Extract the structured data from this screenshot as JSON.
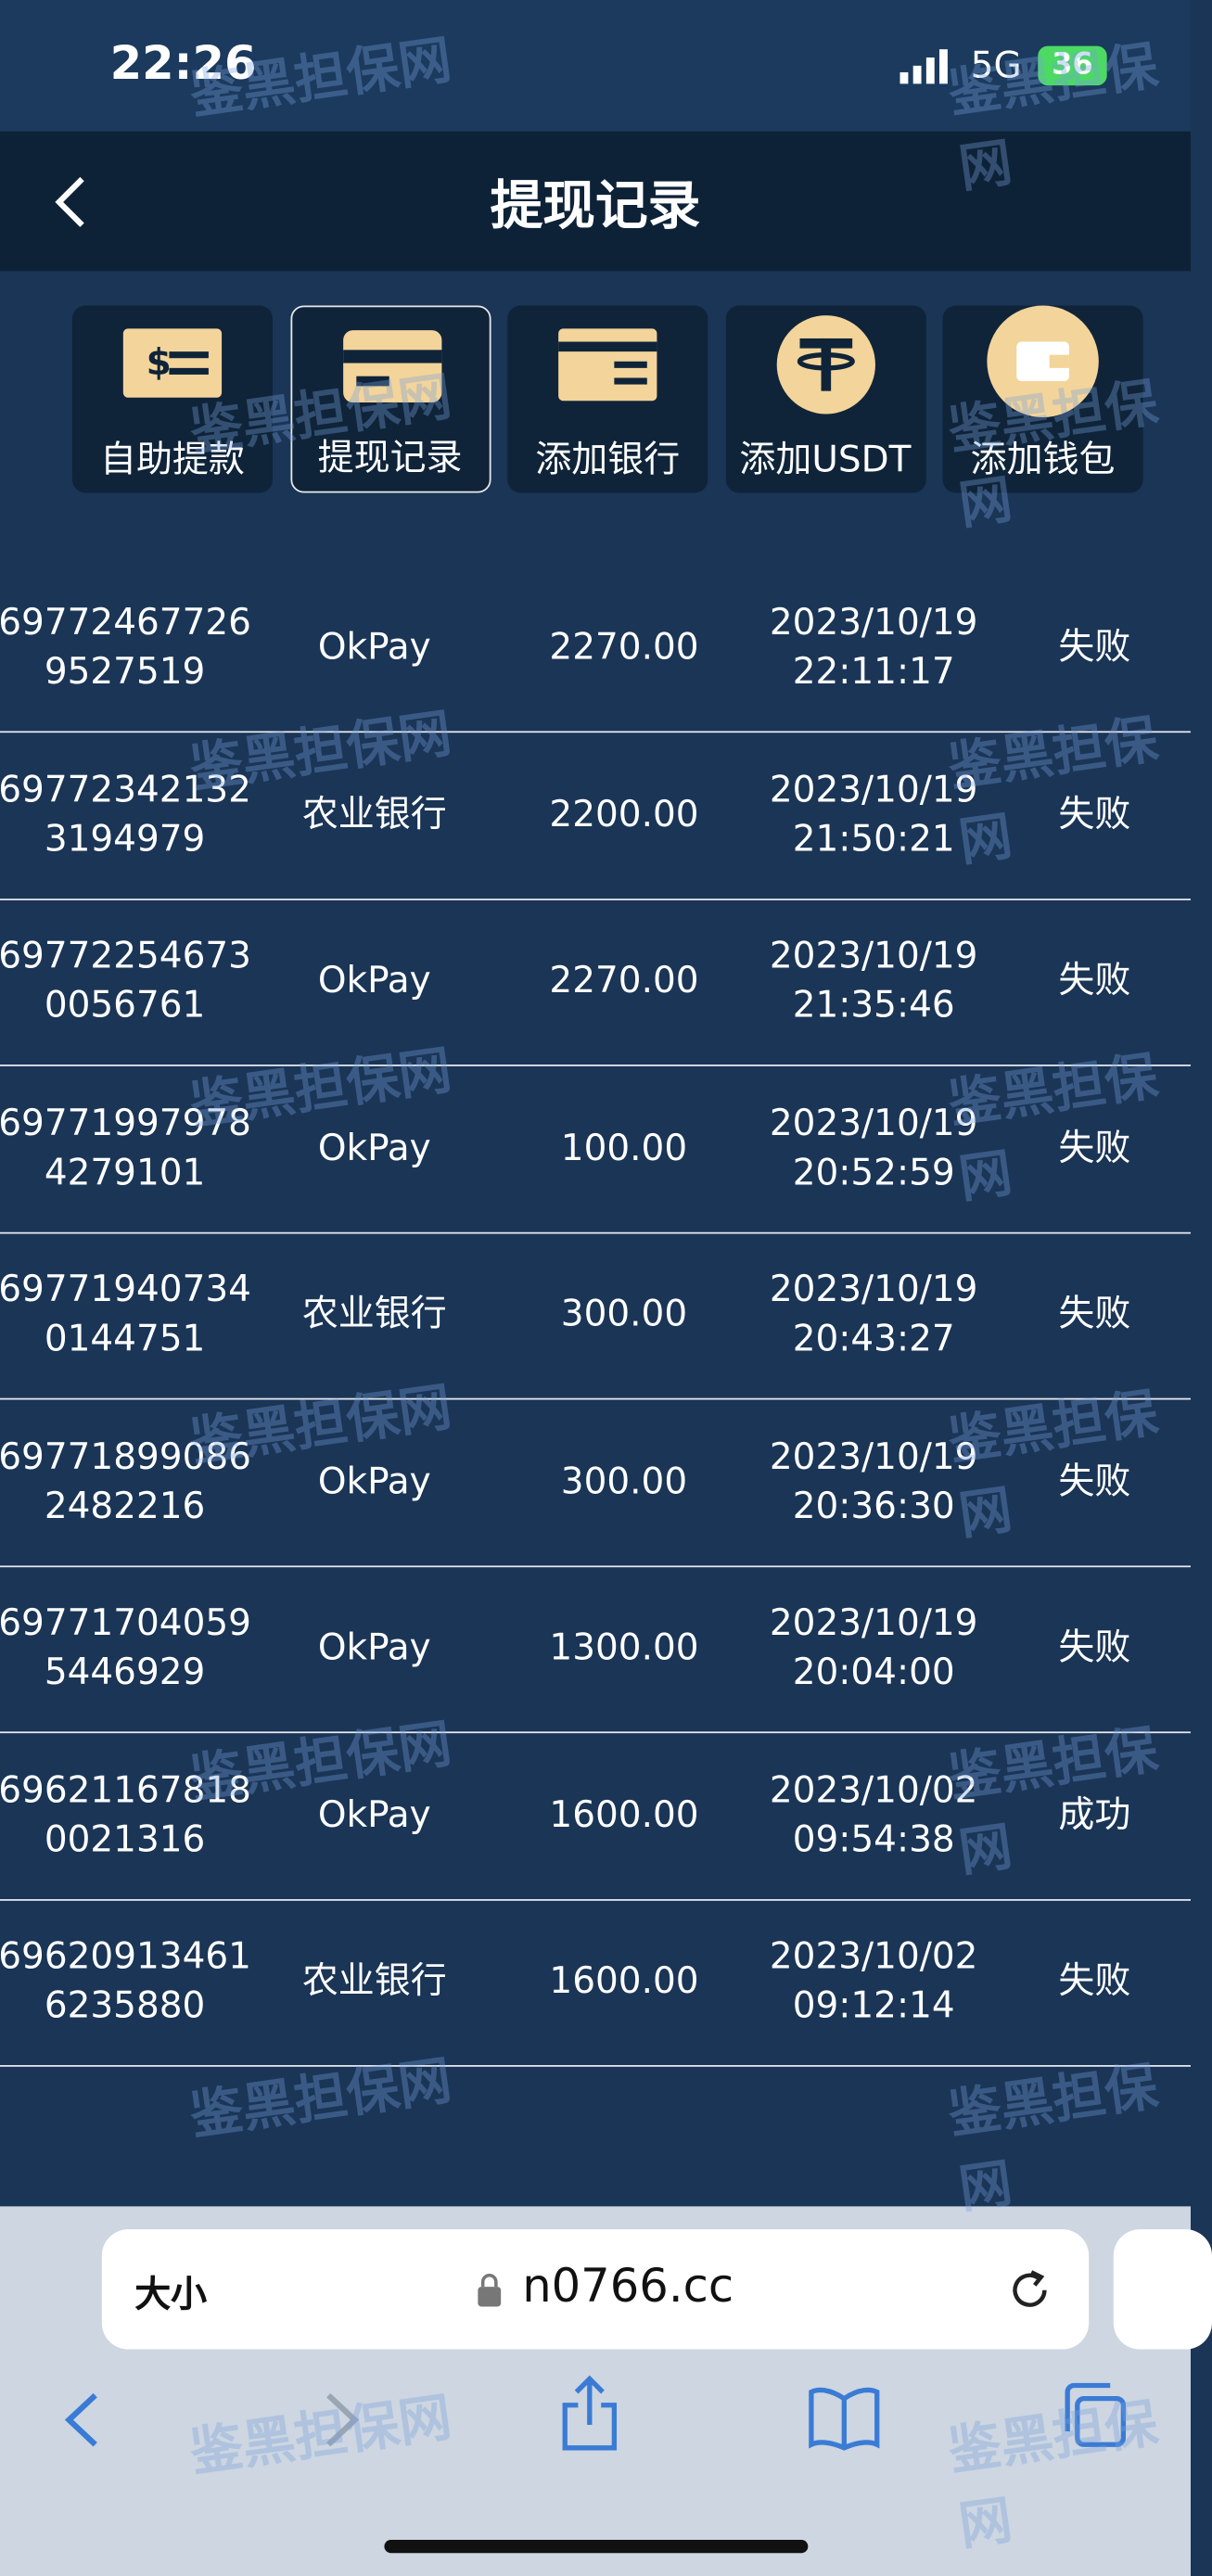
{
  "status_bar": {
    "time": "22:26",
    "network": "5G",
    "battery": "36"
  },
  "header": {
    "title": "提现记录"
  },
  "tabs": [
    "自助提款",
    "提现记录",
    "添加银行",
    "添加USDT",
    "添加钱包"
  ],
  "table": {
    "rows": [
      {
        "id": [
          "69772467726",
          "9527519"
        ],
        "method": "OkPay",
        "amount": "2270.00",
        "date": "2023/10/19",
        "time": "22:11:17",
        "status": "失败"
      },
      {
        "id": [
          "69772342132",
          "3194979"
        ],
        "method": "农业银行",
        "amount": "2200.00",
        "date": "2023/10/19",
        "time": "21:50:21",
        "status": "失败"
      },
      {
        "id": [
          "69772254673",
          "0056761"
        ],
        "method": "OkPay",
        "amount": "2270.00",
        "date": "2023/10/19",
        "time": "21:35:46",
        "status": "失败"
      },
      {
        "id": [
          "69771997978",
          "4279101"
        ],
        "method": "OkPay",
        "amount": "100.00",
        "date": "2023/10/19",
        "time": "20:52:59",
        "status": "失败"
      },
      {
        "id": [
          "69771940734",
          "0144751"
        ],
        "method": "农业银行",
        "amount": "300.00",
        "date": "2023/10/19",
        "time": "20:43:27",
        "status": "失败"
      },
      {
        "id": [
          "69771899086",
          "2482216"
        ],
        "method": "OkPay",
        "amount": "300.00",
        "date": "2023/10/19",
        "time": "20:36:30",
        "status": "失败"
      },
      {
        "id": [
          "69771704059",
          "5446929"
        ],
        "method": "OkPay",
        "amount": "1300.00",
        "date": "2023/10/19",
        "time": "20:04:00",
        "status": "失败"
      },
      {
        "id": [
          "69621167818",
          "0021316"
        ],
        "method": "OkPay",
        "amount": "1600.00",
        "date": "2023/10/02",
        "time": "09:54:38",
        "status": "成功"
      },
      {
        "id": [
          "69620913461",
          "6235880"
        ],
        "method": "农业银行",
        "amount": "1600.00",
        "date": "2023/10/02",
        "time": "09:12:14",
        "status": "失败"
      }
    ]
  },
  "browser": {
    "text_size": "大小",
    "url": "n0766.cc"
  },
  "watermark": "鉴黑担保网"
}
